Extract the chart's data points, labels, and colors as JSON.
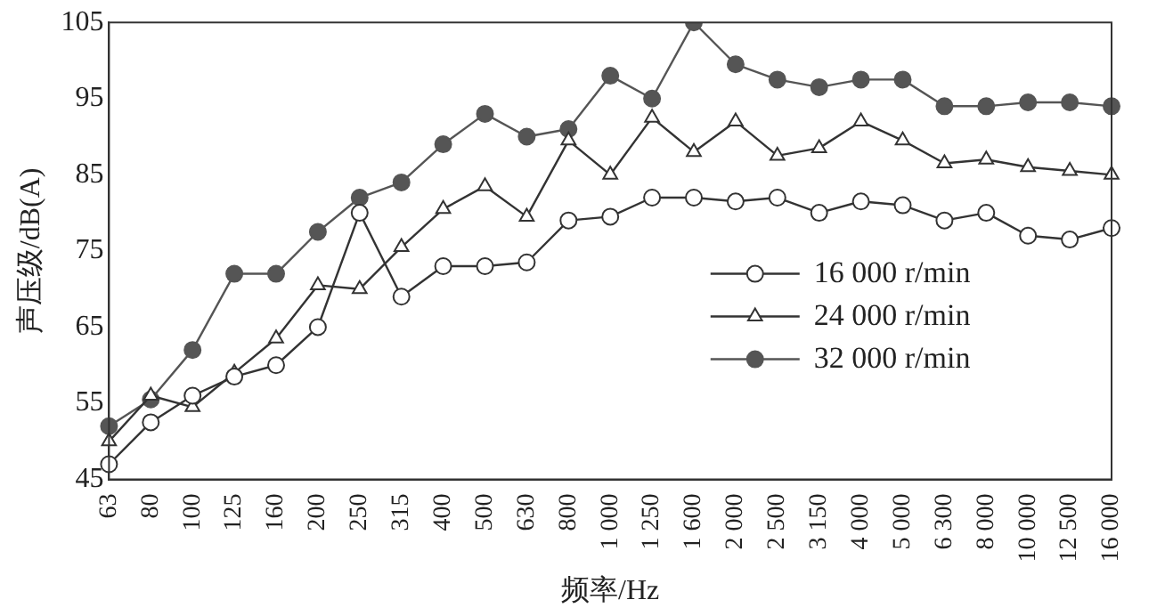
{
  "chart_data": {
    "type": "line",
    "xlabel": "频率/Hz",
    "ylabel": "声压级/dB(A)",
    "categories": [
      "63",
      "80",
      "100",
      "125",
      "160",
      "200",
      "250",
      "315",
      "400",
      "500",
      "630",
      "800",
      "1 000",
      "1 250",
      "1 600",
      "2 000",
      "2 500",
      "3 150",
      "4 000",
      "5 000",
      "6 300",
      "8 000",
      "10 000",
      "12 500",
      "16 000"
    ],
    "ylim": [
      45,
      105
    ],
    "yticks": [
      45,
      55,
      65,
      75,
      85,
      95,
      105
    ],
    "grid": false,
    "legend": "right",
    "line_style": "solid",
    "series": [
      {
        "name": "16 000 r/min",
        "color": "#333333",
        "marker": "circle",
        "values": [
          47,
          52.5,
          56,
          58.5,
          60,
          65,
          80,
          69,
          73,
          73,
          73.5,
          79,
          79.5,
          82,
          82,
          81.5,
          82,
          80,
          81.5,
          81,
          79,
          80,
          77,
          76.5,
          78
        ]
      },
      {
        "name": "24 000 r/min",
        "color": "#333333",
        "marker": "triangle",
        "values": [
          50,
          56,
          54.5,
          59,
          63.5,
          70.5,
          70,
          75.5,
          80.5,
          83.5,
          79.5,
          89.5,
          85,
          92.5,
          88,
          92,
          87.5,
          88.5,
          92,
          89.5,
          86.5,
          87,
          86,
          85.5,
          85
        ]
      },
      {
        "name": "32 000 r/min",
        "color": "#555555",
        "marker": "filled-circle",
        "values": [
          52,
          55.5,
          62,
          72,
          72,
          77.5,
          82,
          84,
          89,
          93,
          90,
          91,
          98,
          95,
          105,
          99.5,
          97.5,
          96.5,
          97.5,
          97.5,
          94,
          94,
          94.5,
          94.5,
          94
        ]
      }
    ]
  }
}
